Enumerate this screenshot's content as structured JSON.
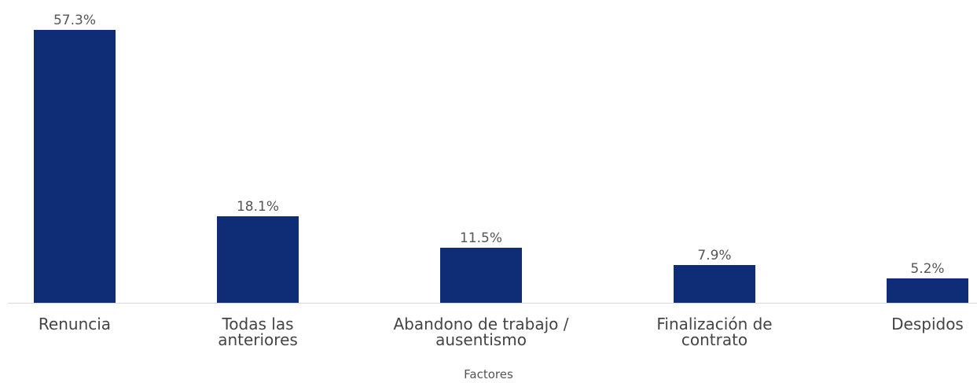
{
  "chart_data": {
    "type": "bar",
    "x_label": "Factores",
    "categories": [
      "Renuncia",
      "Todas las anteriores",
      "Abandono de trabajo / ausentismo",
      "Finalización de contrato",
      "Despidos"
    ],
    "values": [
      57.3,
      18.1,
      11.5,
      7.9,
      5.2
    ],
    "value_labels": [
      "57.3%",
      "18.1%",
      "11.5%",
      "7.9%",
      "5.2%"
    ],
    "color": "#0f2d76"
  }
}
